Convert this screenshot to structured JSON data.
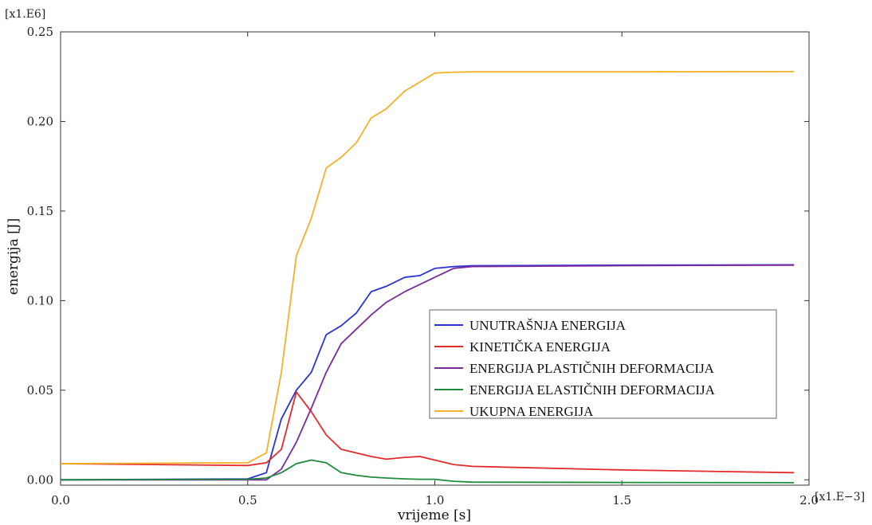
{
  "chart_data": {
    "type": "line",
    "xlabel": "vrijeme [s]",
    "ylabel": "energija [J]",
    "x_multiplier": "[x1.E−3]",
    "y_multiplier": "[x1.E6]",
    "xlim": [
      0.0,
      2.0
    ],
    "ylim": [
      -0.003,
      0.25
    ],
    "x_ticks": [
      0.0,
      0.5,
      1.0,
      1.5,
      2.0
    ],
    "x_tick_labels": [
      "0.0",
      "0.5",
      "1.0",
      "1.5",
      "2.0"
    ],
    "y_ticks": [
      0.0,
      0.05,
      0.1,
      0.15,
      0.2,
      0.25
    ],
    "y_tick_labels": [
      "0.00",
      "0.05",
      "0.10",
      "0.15",
      "0.20",
      "0.25"
    ],
    "grid": false,
    "legend_position": "center-right",
    "series": [
      {
        "name": "UNUTRAŠNJA ENERGIJA",
        "color": "#2a33d4",
        "x": [
          0.0,
          0.5,
          0.55,
          0.59,
          0.63,
          0.67,
          0.71,
          0.75,
          0.79,
          0.83,
          0.87,
          0.92,
          0.96,
          1.0,
          1.05,
          1.1,
          1.5,
          1.96
        ],
        "y": [
          0.0,
          0.0005,
          0.004,
          0.034,
          0.05,
          0.06,
          0.081,
          0.086,
          0.093,
          0.105,
          0.108,
          0.113,
          0.114,
          0.118,
          0.119,
          0.1195,
          0.1198,
          0.12
        ]
      },
      {
        "name": "KINETIČKA ENERGIJA",
        "color": "#e32b2b",
        "x": [
          0.0,
          0.5,
          0.55,
          0.59,
          0.63,
          0.67,
          0.71,
          0.75,
          0.79,
          0.83,
          0.87,
          0.92,
          0.96,
          1.0,
          1.05,
          1.1,
          1.5,
          1.96
        ],
        "y": [
          0.009,
          0.008,
          0.0095,
          0.017,
          0.049,
          0.038,
          0.025,
          0.017,
          0.015,
          0.013,
          0.0115,
          0.0125,
          0.013,
          0.011,
          0.0085,
          0.0075,
          0.0055,
          0.004
        ]
      },
      {
        "name": "ENERGIJA PLASTIČNIH DEFORMACIJA",
        "color": "#7a2a9a",
        "x": [
          0.0,
          0.5,
          0.55,
          0.59,
          0.63,
          0.67,
          0.71,
          0.75,
          0.79,
          0.83,
          0.87,
          0.92,
          0.96,
          1.0,
          1.05,
          1.1,
          1.5,
          1.96
        ],
        "y": [
          0.0,
          0.0,
          0.0,
          0.006,
          0.021,
          0.04,
          0.06,
          0.076,
          0.084,
          0.092,
          0.099,
          0.105,
          0.109,
          0.113,
          0.118,
          0.119,
          0.1195,
          0.1198
        ]
      },
      {
        "name": "ENERGIJA ELASTIČNIH DEFORMACIJA",
        "color": "#1f8a3c",
        "x": [
          0.0,
          0.5,
          0.55,
          0.59,
          0.63,
          0.67,
          0.71,
          0.75,
          0.79,
          0.83,
          0.87,
          0.92,
          0.96,
          1.0,
          1.05,
          1.1,
          1.5,
          1.96
        ],
        "y": [
          0.0,
          0.0003,
          0.001,
          0.004,
          0.009,
          0.011,
          0.0095,
          0.004,
          0.0025,
          0.0015,
          0.001,
          0.0005,
          0.0003,
          0.0003,
          -0.0008,
          -0.0013,
          -0.0015,
          -0.0016
        ]
      },
      {
        "name": "UKUPNA ENERGIJA",
        "color": "#f2b12a",
        "x": [
          0.0,
          0.5,
          0.55,
          0.59,
          0.63,
          0.67,
          0.71,
          0.75,
          0.79,
          0.83,
          0.87,
          0.92,
          0.96,
          1.0,
          1.05,
          1.1,
          1.5,
          1.96
        ],
        "y": [
          0.009,
          0.0095,
          0.015,
          0.06,
          0.125,
          0.146,
          0.174,
          0.18,
          0.188,
          0.202,
          0.207,
          0.217,
          0.222,
          0.227,
          0.2275,
          0.2277,
          0.2277,
          0.2278
        ]
      }
    ]
  }
}
